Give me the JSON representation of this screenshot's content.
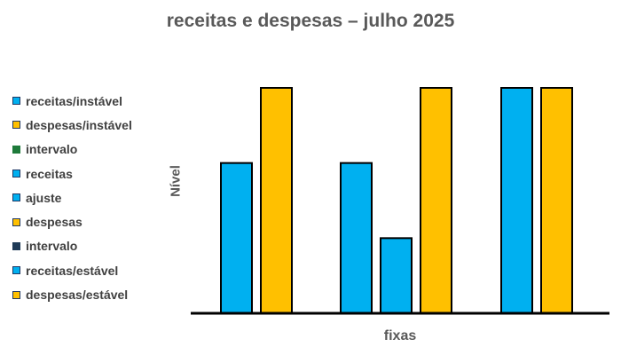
{
  "chart_data": {
    "type": "bar",
    "title": "receitas e despesas – julho 2025",
    "xlabel": "fixas",
    "ylabel": "Nível",
    "ylim": [
      0,
      3
    ],
    "grid": false,
    "legend_position": "left",
    "legend": [
      {
        "label": "receitas/instável",
        "color": "#00b0f0",
        "border": "#1f3864"
      },
      {
        "label": "despesas/instável",
        "color": "#ffc000",
        "border": "#1f3864"
      },
      {
        "label": "intervalo",
        "color": "#1e7a3a",
        "border": "#1e7a3a"
      },
      {
        "label": "receitas",
        "color": "#00b0f0",
        "border": "#1f3864"
      },
      {
        "label": "ajuste",
        "color": "#00b0f0",
        "border": "#1f3864"
      },
      {
        "label": "despesas",
        "color": "#ffc000",
        "border": "#1f3864"
      },
      {
        "label": "intervalo",
        "color": "#1f3b57",
        "border": "#1f3b57"
      },
      {
        "label": "receitas/estável",
        "color": "#00b0f0",
        "border": "#1f3864"
      },
      {
        "label": "despesas/estável",
        "color": "#ffc000",
        "border": "#1f3864"
      }
    ],
    "groups": [
      {
        "bars": [
          {
            "series": "receitas/instável",
            "value": 2,
            "color": "#00b0f0"
          },
          {
            "series": "despesas/instável",
            "value": 3,
            "color": "#ffc000"
          }
        ]
      },
      {
        "bars": [
          {
            "series": "receitas",
            "value": 2,
            "color": "#00b0f0"
          },
          {
            "series": "ajuste",
            "value": 1,
            "color": "#00b0f0"
          },
          {
            "series": "despesas",
            "value": 3,
            "color": "#ffc000"
          }
        ]
      },
      {
        "bars": [
          {
            "series": "receitas/estável",
            "value": 3,
            "color": "#00b0f0"
          },
          {
            "series": "despesas/estável",
            "value": 3,
            "color": "#ffc000"
          }
        ]
      }
    ]
  }
}
